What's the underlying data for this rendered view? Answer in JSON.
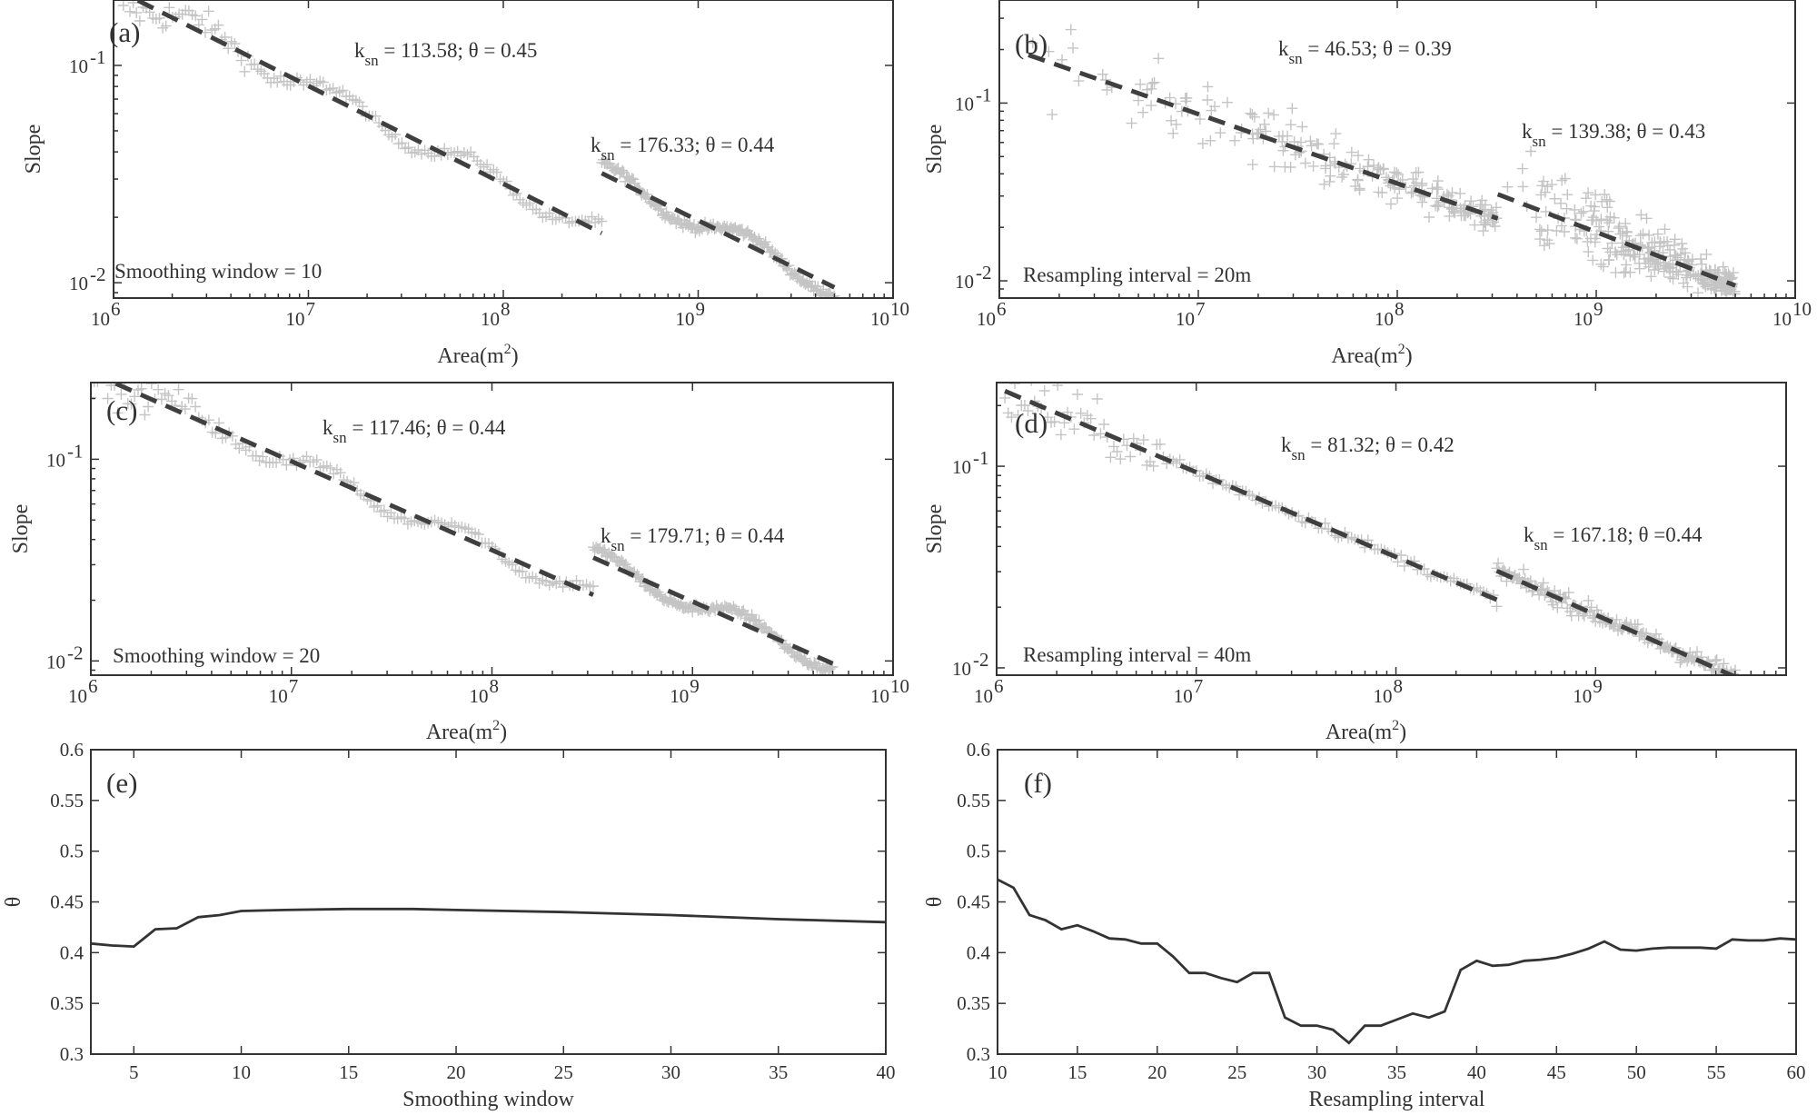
{
  "chart_data": [
    {
      "id": "a",
      "type": "scatter",
      "panel_label": "(a)",
      "xscale": "log",
      "yscale": "log",
      "xlim": [
        1000000,
        10000000000
      ],
      "ylim": [
        0.0085,
        0.2
      ],
      "xticks": [
        {
          "base": "10",
          "exp": "6",
          "value": 1000000
        },
        {
          "base": "10",
          "exp": "7",
          "value": 10000000
        },
        {
          "base": "10",
          "exp": "8",
          "value": 100000000
        },
        {
          "base": "10",
          "exp": "9",
          "value": 1000000000
        },
        {
          "base": "10",
          "exp": "10",
          "value": 10000000000
        }
      ],
      "yticks": [
        {
          "base": "10",
          "exp": "-1",
          "value": 0.1
        },
        {
          "base": "10",
          "exp": "-2",
          "value": 0.01
        }
      ],
      "xlabel": {
        "main": "Area(m",
        "sup": "2",
        "tail": ")"
      },
      "ylabel": "Slope",
      "note": "Smoothing window = 10",
      "scatter_style": "smooth",
      "segments": [
        {
          "ksn": 113.58,
          "theta": 0.45,
          "x_range": [
            1000000,
            320000000
          ],
          "label": {
            "k": "k",
            "sub": "sn",
            "rest": " = 113.58; θ = 0.45"
          }
        },
        {
          "ksn": 176.33,
          "theta": 0.44,
          "x_range": [
            320000000,
            5000000000
          ],
          "label": {
            "k": "k",
            "sub": "sn",
            "rest": " = 176.33; θ = 0.44"
          }
        }
      ]
    },
    {
      "id": "b",
      "type": "scatter",
      "panel_label": "(b)",
      "xscale": "log",
      "yscale": "log",
      "xlim": [
        1000000,
        10000000000
      ],
      "ylim": [
        0.008,
        0.38
      ],
      "xticks": [
        {
          "base": "10",
          "exp": "6",
          "value": 1000000
        },
        {
          "base": "10",
          "exp": "7",
          "value": 10000000
        },
        {
          "base": "10",
          "exp": "8",
          "value": 100000000
        },
        {
          "base": "10",
          "exp": "9",
          "value": 1000000000
        },
        {
          "base": "10",
          "exp": "10",
          "value": 10000000000
        }
      ],
      "yticks": [
        {
          "base": "10",
          "exp": "-1",
          "value": 0.1
        },
        {
          "base": "10",
          "exp": "-2",
          "value": 0.01
        }
      ],
      "xlabel": {
        "main": "Area(m",
        "sup": "2",
        "tail": ")"
      },
      "ylabel": "Slope",
      "note": "Resampling interval = 20m",
      "scatter_style": "noisy",
      "segments": [
        {
          "ksn": 46.53,
          "theta": 0.39,
          "x_range": [
            1400000,
            320000000
          ],
          "label": {
            "k": "k",
            "sub": "sn",
            "rest": " = 46.53; θ = 0.39"
          }
        },
        {
          "ksn": 139.38,
          "theta": 0.43,
          "x_range": [
            320000000,
            5000000000
          ],
          "label": {
            "k": "k",
            "sub": "sn",
            "rest": " = 139.38; θ = 0.43"
          }
        }
      ]
    },
    {
      "id": "c",
      "type": "scatter",
      "panel_label": "(c)",
      "xscale": "log",
      "yscale": "log",
      "xlim": [
        1000000,
        10000000000
      ],
      "ylim": [
        0.0085,
        0.24
      ],
      "xticks": [
        {
          "base": "10",
          "exp": "6",
          "value": 1000000
        },
        {
          "base": "10",
          "exp": "7",
          "value": 10000000
        },
        {
          "base": "10",
          "exp": "8",
          "value": 100000000
        },
        {
          "base": "10",
          "exp": "9",
          "value": 1000000000
        },
        {
          "base": "10",
          "exp": "10",
          "value": 10000000000
        }
      ],
      "yticks": [
        {
          "base": "10",
          "exp": "-1",
          "value": 0.1
        },
        {
          "base": "10",
          "exp": "-2",
          "value": 0.01
        }
      ],
      "xlabel": {
        "main": "Area(m",
        "sup": "2",
        "tail": ")"
      },
      "ylabel": "Slope",
      "note": "Smoothing window = 20",
      "scatter_style": "smooth",
      "segments": [
        {
          "ksn": 117.46,
          "theta": 0.44,
          "x_range": [
            1000000,
            320000000
          ],
          "label": {
            "k": "k",
            "sub": "sn",
            "rest": " = 117.46; θ = 0.44"
          }
        },
        {
          "ksn": 179.71,
          "theta": 0.44,
          "x_range": [
            320000000,
            5000000000
          ],
          "label": {
            "k": "k",
            "sub": "sn",
            "rest": " = 179.71; θ = 0.44"
          }
        }
      ]
    },
    {
      "id": "d",
      "type": "scatter",
      "panel_label": "(d)",
      "xscale": "log",
      "yscale": "log",
      "xlim": [
        1000000,
        9000000000
      ],
      "ylim": [
        0.0092,
        0.26
      ],
      "xticks": [
        {
          "base": "10",
          "exp": "6",
          "value": 1000000
        },
        {
          "base": "10",
          "exp": "7",
          "value": 10000000
        },
        {
          "base": "10",
          "exp": "8",
          "value": 100000000
        },
        {
          "base": "10",
          "exp": "9",
          "value": 1000000000
        }
      ],
      "yticks": [
        {
          "base": "10",
          "exp": "-1",
          "value": 0.1
        },
        {
          "base": "10",
          "exp": "-2",
          "value": 0.01
        }
      ],
      "xlabel": {
        "main": "Area(m",
        "sup": "2",
        "tail": ")"
      },
      "ylabel": "Slope",
      "note": "Resampling interval = 40m",
      "scatter_style": "medium",
      "segments": [
        {
          "ksn": 81.32,
          "theta": 0.42,
          "x_range": [
            1100000,
            320000000
          ],
          "label": {
            "k": "k",
            "sub": "sn",
            "rest": " = 81.32; θ = 0.42"
          }
        },
        {
          "ksn": 167.18,
          "theta": 0.44,
          "x_range": [
            320000000,
            5000000000
          ],
          "label": {
            "k": "k",
            "sub": "sn",
            "rest": "  167.18; θ =0.44",
            "eq": " = "
          }
        }
      ]
    },
    {
      "id": "e",
      "type": "line",
      "panel_label": "(e)",
      "xlim": [
        3,
        40
      ],
      "ylim": [
        0.3,
        0.6
      ],
      "xticks": [
        "5",
        "10",
        "15",
        "20",
        "25",
        "30",
        "35",
        "40"
      ],
      "yticks": [
        "0.3",
        "0.35",
        "0.4",
        "0.45",
        "0.5",
        "0.55",
        "0.6"
      ],
      "xlabel": "Smoothing window",
      "ylabel": "θ",
      "x": [
        3,
        4,
        5,
        6,
        7,
        8,
        9,
        10,
        12,
        15,
        18,
        20,
        25,
        30,
        35,
        40
      ],
      "y": [
        0.409,
        0.407,
        0.406,
        0.423,
        0.424,
        0.435,
        0.437,
        0.441,
        0.442,
        0.443,
        0.443,
        0.442,
        0.44,
        0.437,
        0.433,
        0.43
      ]
    },
    {
      "id": "f",
      "type": "line",
      "panel_label": "(f)",
      "xlim": [
        10,
        60
      ],
      "ylim": [
        0.3,
        0.6
      ],
      "xticks": [
        "10",
        "15",
        "20",
        "25",
        "30",
        "35",
        "40",
        "45",
        "50",
        "55",
        "60"
      ],
      "yticks": [
        "0.3",
        "0.35",
        "0.4",
        "0.45",
        "0.5",
        "0.55",
        "0.6"
      ],
      "xlabel": "Resampling interval",
      "ylabel": "θ",
      "x": [
        10,
        11,
        12,
        13,
        14,
        15,
        16,
        17,
        18,
        19,
        20,
        21,
        22,
        23,
        24,
        25,
        26,
        27,
        28,
        29,
        30,
        31,
        32,
        33,
        34,
        35,
        36,
        37,
        38,
        39,
        40,
        41,
        42,
        43,
        44,
        45,
        46,
        47,
        48,
        49,
        50,
        51,
        52,
        53,
        54,
        55,
        56,
        57,
        58,
        59,
        60
      ],
      "y": [
        0.472,
        0.464,
        0.437,
        0.432,
        0.423,
        0.427,
        0.421,
        0.414,
        0.413,
        0.409,
        0.409,
        0.396,
        0.38,
        0.38,
        0.375,
        0.371,
        0.38,
        0.38,
        0.336,
        0.328,
        0.328,
        0.324,
        0.311,
        0.328,
        0.328,
        0.334,
        0.34,
        0.336,
        0.342,
        0.383,
        0.392,
        0.387,
        0.388,
        0.392,
        0.393,
        0.395,
        0.399,
        0.404,
        0.411,
        0.403,
        0.402,
        0.404,
        0.405,
        0.405,
        0.405,
        0.404,
        0.413,
        0.412,
        0.412,
        0.414,
        0.413
      ]
    }
  ]
}
